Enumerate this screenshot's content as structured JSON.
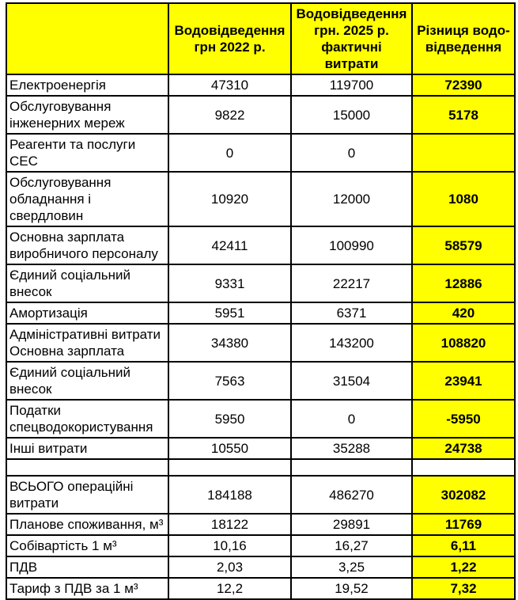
{
  "colors": {
    "highlight": "#ffff00",
    "border": "#000000",
    "background": "#ffffff",
    "text": "#000000"
  },
  "table": {
    "columns": [
      {
        "label": ""
      },
      {
        "label": "Водовідведення\nгрн 2022 р."
      },
      {
        "label": "Водовідведення\nгрн. 2025 р.\nфактичні витрати"
      },
      {
        "label": "Різниця водо-\nвідведення"
      }
    ],
    "rows": [
      {
        "label": "Електроенергія",
        "v2022": "47310",
        "v2025": "119700",
        "diff": "72390"
      },
      {
        "label": "Обслуговування\nінженерних мереж",
        "v2022": "9822",
        "v2025": "15000",
        "diff": "5178"
      },
      {
        "label": "Реагенти та послуги СЕС",
        "v2022": "0",
        "v2025": "0",
        "diff": ""
      },
      {
        "label": "Обслуговування\nобладнання і свердловин",
        "v2022": "10920",
        "v2025": "12000",
        "diff": "1080"
      },
      {
        "label": "Основна зарплата\nвиробничого персоналу",
        "v2022": "42411",
        "v2025": "100990",
        "diff": "58579"
      },
      {
        "label": "Єдиний соціальний\nвнесок",
        "v2022": "9331",
        "v2025": "22217",
        "diff": "12886"
      },
      {
        "label": "Амортизація",
        "v2022": "5951",
        "v2025": "6371",
        "diff": "420"
      },
      {
        "label": "Адміністративні витрати\nОсновна зарплата",
        "v2022": "34380",
        "v2025": "143200",
        "diff": "108820"
      },
      {
        "label": "Єдиний соціальний\nвнесок",
        "v2022": "7563",
        "v2025": "31504",
        "diff": "23941"
      },
      {
        "label": "Податки\nспецводокористування",
        "v2022": "5950",
        "v2025": "0",
        "diff": "-5950"
      },
      {
        "label": "Інші витрати",
        "v2022": "10550",
        "v2025": "35288",
        "diff": "24738"
      },
      {
        "label": "",
        "v2022": "",
        "v2025": "",
        "diff": "",
        "spacer": true
      },
      {
        "label": "ВСЬОГО операційні\nвитрати",
        "v2022": "184188",
        "v2025": "486270",
        "diff": "302082"
      },
      {
        "label": "Планове споживання, м³",
        "v2022": "18122",
        "v2025": "29891",
        "diff": "11769"
      },
      {
        "label": "Собівартість 1 м³",
        "v2022": "10,16",
        "v2025": "16,27",
        "diff": "6,11"
      },
      {
        "label": "ПДВ",
        "v2022": "2,03",
        "v2025": "3,25",
        "diff": "1,22"
      },
      {
        "label": "Тариф з ПДВ за 1 м³",
        "v2022": "12,2",
        "v2025": "19,52",
        "diff": "7,32"
      }
    ]
  }
}
